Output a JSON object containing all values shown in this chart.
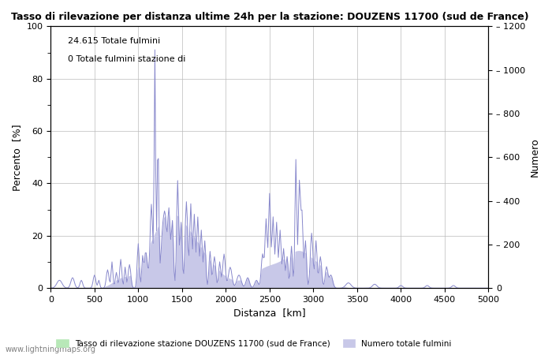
{
  "title": "Tasso di rilevazione per distanza ultime 24h per la stazione: DOUZENS 11700 (sud de France)",
  "xlabel": "Distanza  [km]",
  "ylabel_left": "Percento  [%]",
  "ylabel_right": "Numero",
  "annotation_line1": "24.615 Totale fulmini",
  "annotation_line2": "0 Totale fulmini stazione di",
  "xlim": [
    0,
    5000
  ],
  "ylim_left": [
    0,
    100
  ],
  "ylim_right": [
    0,
    1200
  ],
  "xticks": [
    0,
    500,
    1000,
    1500,
    2000,
    2500,
    3000,
    3500,
    4000,
    4500,
    5000
  ],
  "yticks_left": [
    0,
    20,
    40,
    60,
    80,
    100
  ],
  "yticks_right": [
    0,
    200,
    400,
    600,
    800,
    1000,
    1200
  ],
  "legend_label_green": "Tasso di rilevazione stazione DOUZENS 11700 (sud de France)",
  "legend_label_blue": "Numero totale fulmini",
  "watermark": "www.lightningmaps.org",
  "line_color": "#8888cc",
  "fill_color_blue": "#c8c8e8",
  "fill_color_green": "#b8e8b8",
  "background_color": "#ffffff",
  "grid_color": "#bbbbbb"
}
